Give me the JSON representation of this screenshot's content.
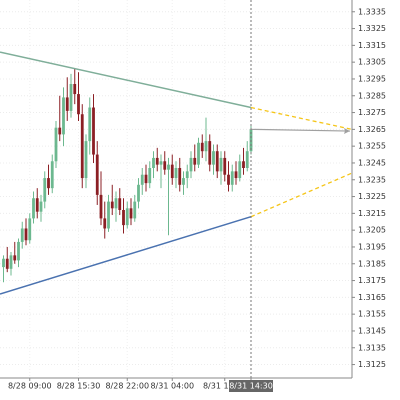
{
  "chart_data": {
    "type": "candlestick",
    "categories": [
      null,
      null,
      null,
      null,
      null,
      null,
      null,
      "8/28 09:00",
      null,
      null,
      null,
      null,
      null,
      null,
      null,
      null,
      null,
      null,
      null,
      null,
      "8/28 15:30",
      null,
      null,
      null,
      null,
      null,
      null,
      null,
      null,
      null,
      null,
      null,
      null,
      "8/28 22:00",
      null,
      null,
      null,
      null,
      null,
      null,
      null,
      null,
      null,
      null,
      null,
      "8/31 04:00",
      null,
      null,
      null,
      null,
      null,
      null,
      null,
      null,
      null,
      null,
      null,
      null,
      null,
      "8/31 11:00",
      null,
      null,
      null,
      null,
      null,
      null,
      "8/31 14:30"
    ],
    "open": [
      1.3183,
      1.3188,
      1.3182,
      1.319,
      1.3187,
      1.3198,
      1.3206,
      1.3199,
      1.3212,
      1.3224,
      1.3216,
      1.3222,
      1.3236,
      1.323,
      1.3246,
      1.3266,
      1.3262,
      1.3284,
      1.3276,
      1.3292,
      1.3286,
      1.3274,
      1.3236,
      1.3258,
      1.3278,
      1.325,
      1.3226,
      1.3212,
      1.3206,
      1.3222,
      1.3218,
      1.3224,
      1.3217,
      1.3208,
      1.3218,
      1.3212,
      1.3222,
      1.3232,
      1.3238,
      1.3233,
      1.3242,
      1.3248,
      1.3244,
      1.3246,
      1.3241,
      1.3244,
      1.3236,
      1.3242,
      1.3232,
      1.3236,
      1.324,
      1.3248,
      1.3244,
      1.3257,
      1.3252,
      1.3258,
      1.3244,
      1.3252,
      1.324,
      1.3248,
      1.3238,
      1.3232,
      1.324,
      1.3236,
      1.3246,
      1.3242,
      1.3252
    ],
    "high": [
      1.319,
      1.3195,
      1.3192,
      1.3198,
      1.32,
      1.321,
      1.3212,
      1.3215,
      1.3228,
      1.323,
      1.3226,
      1.324,
      1.3244,
      1.325,
      1.327,
      1.3285,
      1.329,
      1.3296,
      1.3298,
      1.3301,
      1.3299,
      1.328,
      1.3262,
      1.3284,
      1.3286,
      1.3258,
      1.324,
      1.3222,
      1.3226,
      1.3232,
      1.3228,
      1.323,
      1.3224,
      1.3222,
      1.3224,
      1.3226,
      1.3236,
      1.3242,
      1.3244,
      1.3246,
      1.3252,
      1.3254,
      1.325,
      1.3252,
      1.3248,
      1.325,
      1.3246,
      1.3248,
      1.324,
      1.3244,
      1.3252,
      1.3256,
      1.326,
      1.3262,
      1.3272,
      1.3262,
      1.3256,
      1.3256,
      1.3252,
      1.3252,
      1.3246,
      1.3244,
      1.3246,
      1.325,
      1.3254,
      1.3258,
      1.3268
    ],
    "low": [
      1.3174,
      1.318,
      1.3178,
      1.3185,
      1.3183,
      1.3194,
      1.3196,
      1.3197,
      1.3209,
      1.3212,
      1.321,
      1.3218,
      1.3226,
      1.3227,
      1.3242,
      1.3258,
      1.3255,
      1.327,
      1.3272,
      1.328,
      1.327,
      1.323,
      1.323,
      1.325,
      1.3245,
      1.322,
      1.3208,
      1.32,
      1.3204,
      1.3214,
      1.321,
      1.3214,
      1.3203,
      1.3206,
      1.3208,
      1.321,
      1.3218,
      1.3226,
      1.3228,
      1.323,
      1.3236,
      1.324,
      1.323,
      1.3238,
      1.3202,
      1.3232,
      1.323,
      1.3228,
      1.3226,
      1.323,
      1.3236,
      1.324,
      1.3242,
      1.3248,
      1.3246,
      1.324,
      1.3238,
      1.3236,
      1.3232,
      1.3234,
      1.3228,
      1.3228,
      1.3232,
      1.3234,
      1.3238,
      1.324,
      1.325
    ],
    "close": [
      1.3188,
      1.3182,
      1.319,
      1.3187,
      1.3198,
      1.3206,
      1.3199,
      1.3212,
      1.3224,
      1.3216,
      1.3222,
      1.3236,
      1.323,
      1.3246,
      1.3266,
      1.3262,
      1.3284,
      1.3276,
      1.3292,
      1.3286,
      1.3274,
      1.3236,
      1.3258,
      1.3278,
      1.325,
      1.3226,
      1.3212,
      1.3206,
      1.3222,
      1.3218,
      1.3224,
      1.3217,
      1.3208,
      1.3218,
      1.3212,
      1.3222,
      1.3232,
      1.3238,
      1.3233,
      1.3242,
      1.3248,
      1.3244,
      1.3246,
      1.3241,
      1.3244,
      1.3236,
      1.3242,
      1.3232,
      1.3236,
      1.324,
      1.3248,
      1.3244,
      1.3257,
      1.3252,
      1.3258,
      1.3244,
      1.3252,
      1.324,
      1.3248,
      1.3238,
      1.3232,
      1.324,
      1.3236,
      1.3246,
      1.3242,
      1.3252,
      1.3265
    ],
    "up_color": "#6cb88f",
    "down_color": "#8b1f24",
    "trendlines": [
      {
        "color": "#7fae99",
        "start": 1.3311,
        "end": 1.3278,
        "projection": 1.3265,
        "projection_color": "#f5c518"
      },
      {
        "color": "#4a72b0",
        "start": 1.3167,
        "end": 1.3213,
        "projection": 1.3239,
        "projection_color": "#f5c518"
      }
    ],
    "arrow": {
      "color": "#a0a0a0",
      "projection": 1.3264
    },
    "ylim": [
      1.3117,
      1.3342
    ],
    "yticks": [
      1.3125,
      1.3135,
      1.3145,
      1.3155,
      1.3165,
      1.3175,
      1.3185,
      1.3195,
      1.3205,
      1.3215,
      1.3225,
      1.3235,
      1.3245,
      1.3255,
      1.3265,
      1.3275,
      1.3285,
      1.3295,
      1.3305,
      1.3315,
      1.3325,
      1.3335
    ],
    "grid": true
  }
}
